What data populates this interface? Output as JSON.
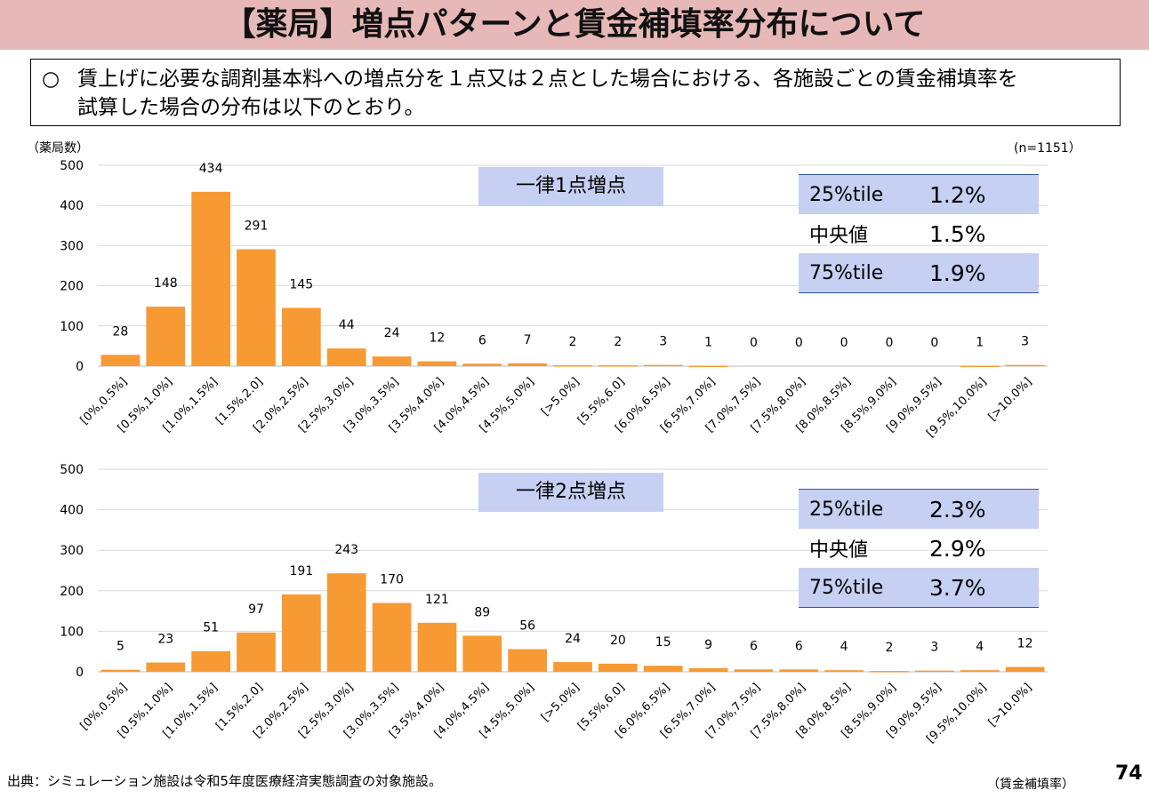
{
  "title": "【薬局】増点パターンと賃金補填率分布について",
  "note": {
    "bullet": "○",
    "line1": "賃上げに必要な調剤基本料への増点分を１点又は２点とした場合における、各施設ごとの賃金補填率を",
    "line2": "試算した場合の分布は以下のとおり。"
  },
  "ylabel": "（薬局数）",
  "n_label": "(n=1151）",
  "x_unit": "（賃金補填率）",
  "source": "出典：シミュレーション施設は令和5年度医療経済実態調査の対象施設。",
  "page_number": "74",
  "stats1": {
    "title": "一律1点増点",
    "rows": [
      {
        "k": "25%tile",
        "v": "1.2%"
      },
      {
        "k": "中央値",
        "v": "1.5%"
      },
      {
        "k": "75%tile",
        "v": "1.9%"
      }
    ]
  },
  "stats2": {
    "title": "一律2点増点",
    "rows": [
      {
        "k": "25%tile",
        "v": "2.3%"
      },
      {
        "k": "中央値",
        "v": "2.9%"
      },
      {
        "k": "75%tile",
        "v": "3.7%"
      }
    ]
  },
  "colors": {
    "bar": "#f79a33",
    "grid": "#d9d9d9"
  },
  "chart_data": [
    {
      "type": "bar",
      "title": "一律1点増点",
      "ylabel": "（薬局数）",
      "ylim": [
        0,
        500
      ],
      "yticks": [
        0,
        100,
        200,
        300,
        400,
        500
      ],
      "categories": [
        "[0%,0.5%]",
        "[0.5%,1.0%]",
        "[1.0%,1.5%]",
        "[1.5%,2.0]",
        "[2.0%,2.5%]",
        "[2.5%,3.0%]",
        "[3.0%,3.5%]",
        "[3.5%,4.0%]",
        "[4.0%,4.5%]",
        "[4.5%,5.0%]",
        "[>5.0%]",
        "[5.5%,6.0]",
        "[6.0%,6.5%]",
        "[6.5%,7.0%]",
        "[7.0%,7.5%]",
        "[7.5%,8.0%]",
        "[8.0%,8.5%]",
        "[8.5%,9.0%]",
        "[9.0%,9.5%]",
        "[9.5%,10.0%]",
        "[>10.0%]"
      ],
      "values": [
        28,
        148,
        434,
        291,
        145,
        44,
        24,
        12,
        6,
        7,
        2,
        2,
        3,
        1,
        0,
        0,
        0,
        0,
        0,
        1,
        3
      ]
    },
    {
      "type": "bar",
      "title": "一律2点増点",
      "ylabel": "",
      "ylim": [
        0,
        500
      ],
      "yticks": [
        0,
        100,
        200,
        300,
        400,
        500
      ],
      "categories": [
        "[0%,0.5%]",
        "[0.5%,1.0%]",
        "[1.0%,1.5%]",
        "[1.5%,2.0]",
        "[2.0%,2.5%]",
        "[2.5%,3.0%]",
        "[3.0%,3.5%]",
        "[3.5%,4.0%]",
        "[4.0%,4.5%]",
        "[4.5%,5.0%]",
        "[>5.0%]",
        "[5.5%,6.0]",
        "[6.0%,6.5%]",
        "[6.5%,7.0%]",
        "[7.0%,7.5%]",
        "[7.5%,8.0%]",
        "[8.0%,8.5%]",
        "[8.5%,9.0%]",
        "[9.0%,9.5%]",
        "[9.5%,10.0%]",
        "[>10.0%]"
      ],
      "values": [
        5,
        23,
        51,
        97,
        191,
        243,
        170,
        121,
        89,
        56,
        24,
        20,
        15,
        9,
        6,
        6,
        4,
        2,
        3,
        4,
        12
      ]
    }
  ]
}
